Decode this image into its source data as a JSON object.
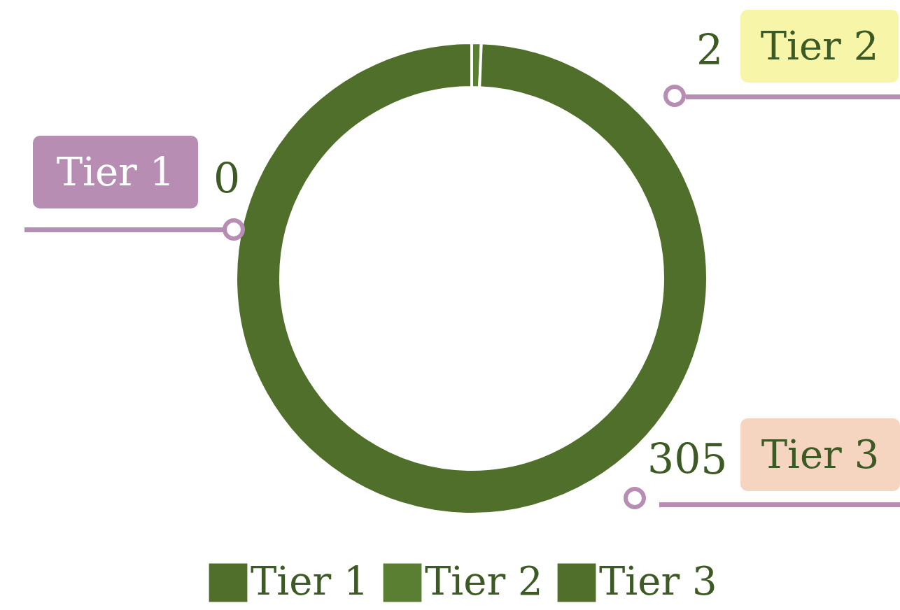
{
  "chart_data": {
    "type": "donut",
    "categories": [
      "Tier 1",
      "Tier 2",
      "Tier 3"
    ],
    "values": [
      0,
      2,
      305
    ],
    "colors": [
      "#4f6f2a",
      "#5a7f33",
      "#4f6f2a"
    ],
    "annotations": [
      "0",
      "2",
      "305"
    ],
    "legend": "bottom"
  }
}
